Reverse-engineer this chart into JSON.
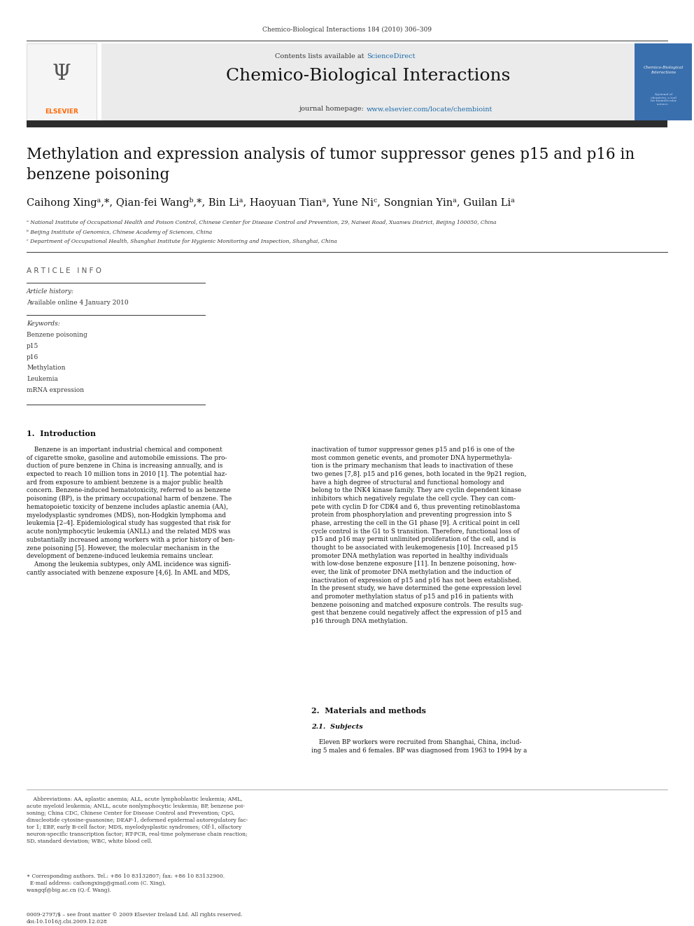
{
  "page_width": 9.92,
  "page_height": 13.23,
  "bg_color": "#ffffff",
  "header_journal_line": "Chemico-Biological Interactions 184 (2010) 306–309",
  "header_bg": "#e8e8e8",
  "header_title": "Chemico-Biological Interactions",
  "dark_bar_color": "#2c2c2c",
  "article_title": "Methylation and expression analysis of tumor suppressor genes p15 and p16 in\nbenzene poisoning",
  "authors": "Caihong Xingᵃ,*, Qian-fei Wangᵇ,*, Bin Liᵃ, Haoyuan Tianᵃ, Yune Niᶜ, Songnian Yinᵃ, Guilan Liᵃ",
  "affil_a": "ᵃ National Institute of Occupational Health and Poison Control, Chinese Center for Disease Control and Prevention, 29, Naiwei Road, Xuanwu District, Beijing 100050, China",
  "affil_b": "ᵇ Beijing Institute of Genomics, Chinese Academy of Sciences, China",
  "affil_c": "ᶜ Department of Occupational Health, Shanghai Institute for Hygienic Monitoring and Inspection, Shanghai, China",
  "article_info_label": "A R T I C L E   I N F O",
  "article_history_label": "Article history:",
  "available_online": "Available online 4 January 2010",
  "keywords_label": "Keywords:",
  "keywords": [
    "Benzene poisoning",
    "p15",
    "p16",
    "Methylation",
    "Leukemia",
    "mRNA expression"
  ],
  "intro_heading": "1.  Introduction",
  "section2_heading": "2.  Materials and methods",
  "section21_heading": "2.1.  Subjects",
  "elsevier_orange": "#ff6600",
  "sciencedirect_blue": "#1a6aaa",
  "link_blue": "#1a6aaa"
}
